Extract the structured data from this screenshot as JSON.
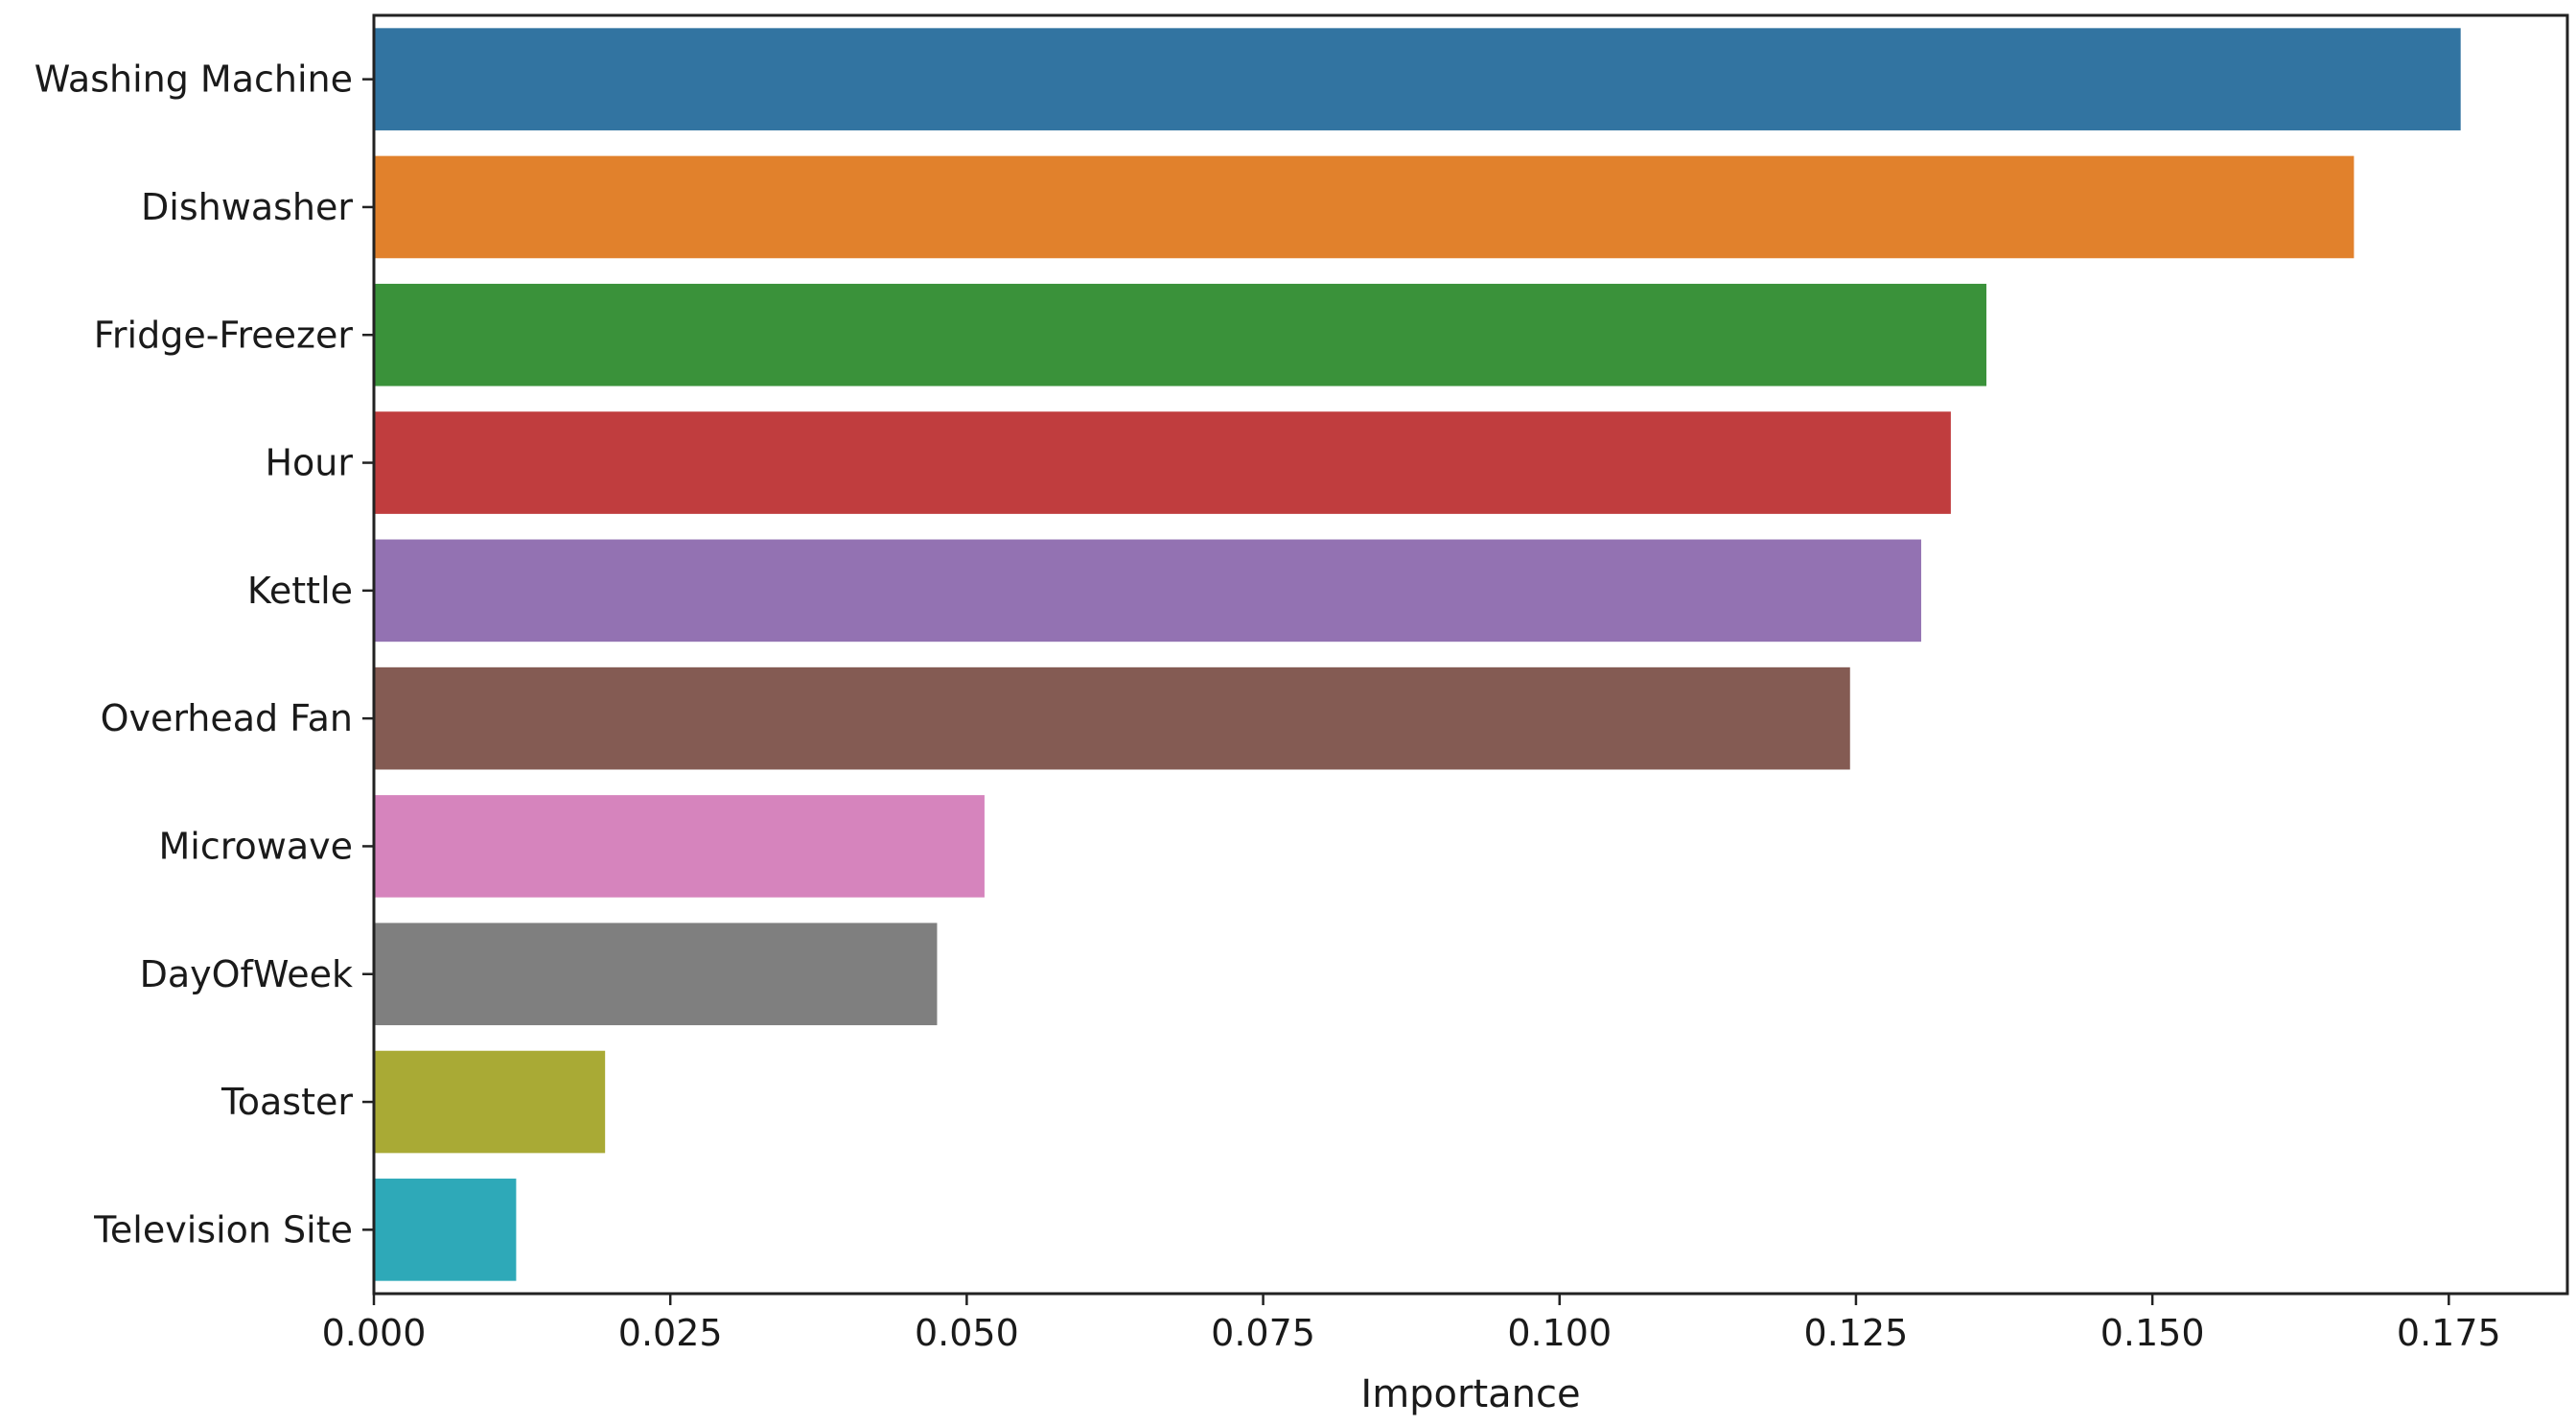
{
  "chart_data": {
    "type": "bar",
    "orientation": "horizontal",
    "title": "",
    "xlabel": "Importance",
    "ylabel": "",
    "categories": [
      "Washing Machine",
      "Dishwasher",
      "Fridge-Freezer",
      "Hour",
      "Kettle",
      "Overhead Fan",
      "Microwave",
      "DayOfWeek",
      "Toaster",
      "Television Site"
    ],
    "values": [
      0.176,
      0.167,
      0.136,
      0.133,
      0.1305,
      0.1245,
      0.0515,
      0.0475,
      0.0195,
      0.012
    ],
    "colors": [
      "#3274a1",
      "#e1812c",
      "#3a923a",
      "#c03d3e",
      "#9372b2",
      "#845b53",
      "#d684bd",
      "#7f7f7f",
      "#a9aa35",
      "#2ea9b8"
    ],
    "xlim": [
      0,
      0.185
    ],
    "xticks": [
      0.0,
      0.025,
      0.05,
      0.075,
      0.1,
      0.125,
      0.15,
      0.175
    ],
    "xtick_labels": [
      "0.000",
      "0.025",
      "0.050",
      "0.075",
      "0.100",
      "0.125",
      "0.150",
      "0.175"
    ],
    "grid": false,
    "legend": "none"
  }
}
